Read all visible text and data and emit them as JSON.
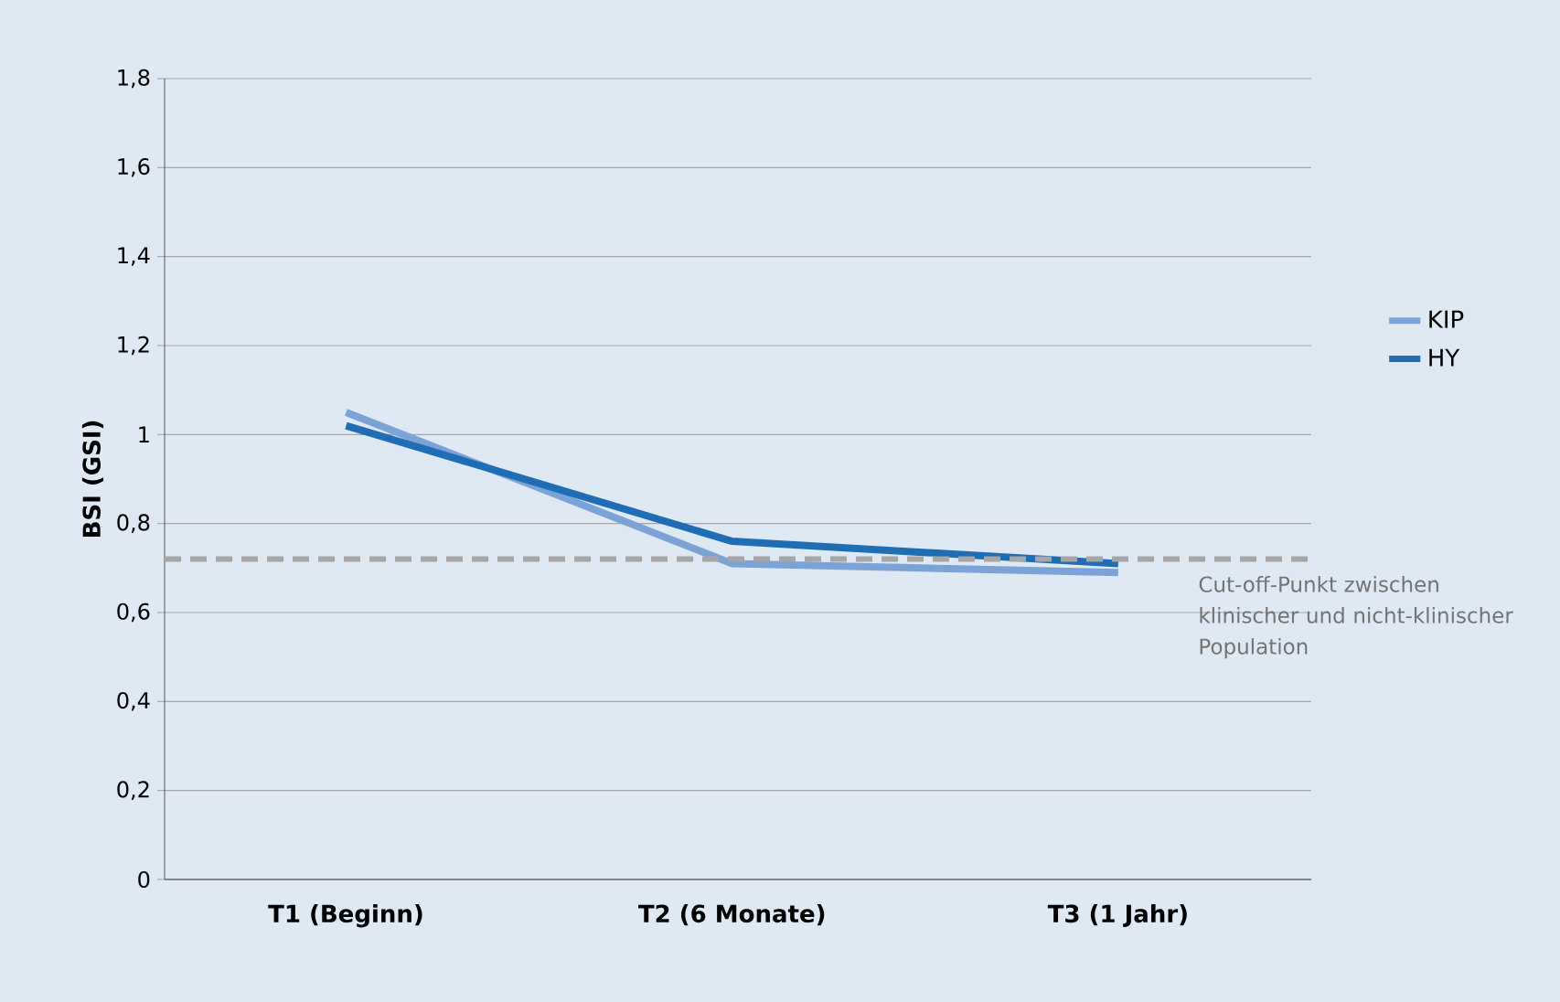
{
  "chart_data": {
    "type": "line",
    "ylabel": "BSI (GSI)",
    "categories": [
      "T1 (Beginn)",
      "T2 (6 Monate)",
      "T3 (1 Jahr)"
    ],
    "series": [
      {
        "name": "KIP",
        "color": "#7ba3d6",
        "values": [
          1.05,
          0.71,
          0.69
        ]
      },
      {
        "name": "HY",
        "color": "#1f6db5",
        "values": [
          1.02,
          0.76,
          0.71
        ]
      }
    ],
    "ylim": [
      0,
      1.8
    ],
    "yticks": [
      0,
      {
        "value": 0.2,
        "label": "0,2"
      },
      {
        "value": 0.4,
        "label": "0,4"
      },
      {
        "value": 0.6,
        "label": "0,6"
      },
      {
        "value": 0.8,
        "label": "0,8"
      },
      1,
      {
        "value": 1.2,
        "label": "1,2"
      },
      {
        "value": 1.4,
        "label": "1,4"
      },
      {
        "value": 1.6,
        "label": "1,6"
      },
      {
        "value": 1.8,
        "label": "1,8"
      }
    ],
    "ref_lines": [
      {
        "axis": "y",
        "value": 0.72,
        "label": "Cut-off-Punkt zwischen klinischer und nicht-klinischer Population",
        "color": "#a6a6a6",
        "line_style": "dashed"
      }
    ],
    "grid": "y",
    "legend": "right",
    "marker": "none",
    "line_style": "solid"
  }
}
